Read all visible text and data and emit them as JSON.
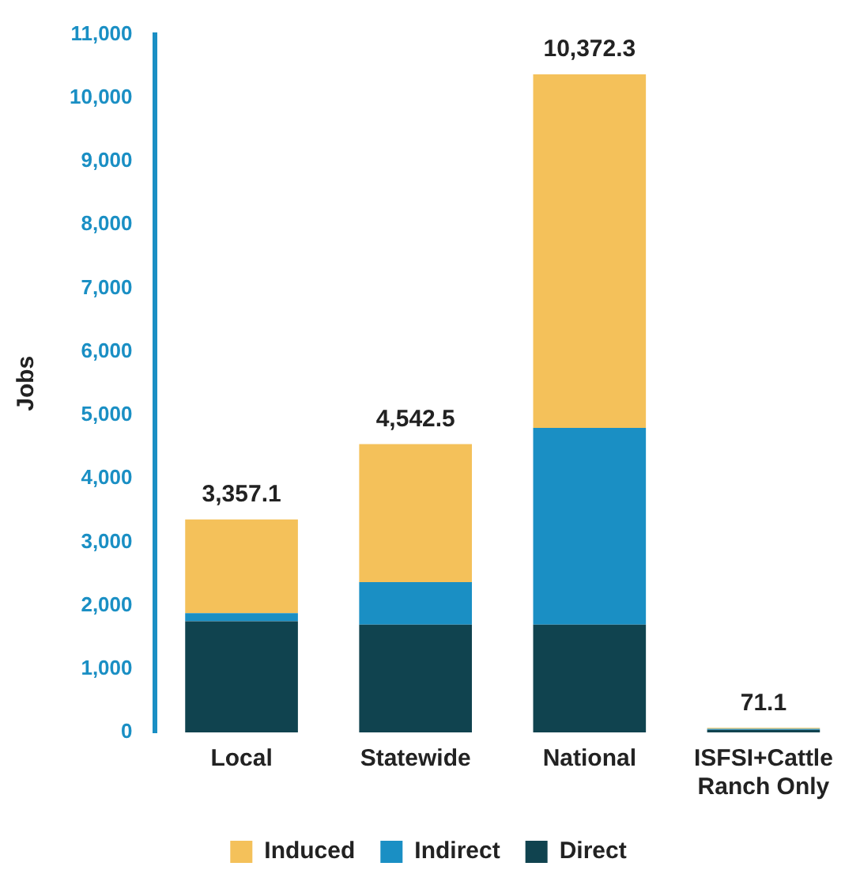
{
  "chart_data": {
    "type": "bar",
    "ylabel": "Jobs",
    "categories": [
      "Local",
      "Statewide",
      "National",
      "ISFSI+Cattle Ranch Only"
    ],
    "stacked": true,
    "series": [
      {
        "name": "Direct",
        "color": "#10434f",
        "values": [
          1750,
          1700,
          1700,
          40
        ]
      },
      {
        "name": "Indirect",
        "color": "#1a8fc4",
        "values": [
          130,
          670,
          3100,
          15
        ]
      },
      {
        "name": "Induced",
        "color": "#f4c15a",
        "values": [
          1477.1,
          2172.5,
          5572.3,
          16.1
        ]
      }
    ],
    "ylim": [
      0,
      11000
    ],
    "yticks": [
      {
        "value": 0,
        "label": "0"
      },
      {
        "value": 1000,
        "label": "1,000"
      },
      {
        "value": 2000,
        "label": "2,000"
      },
      {
        "value": 3000,
        "label": "3,000"
      },
      {
        "value": 4000,
        "label": "4,000"
      },
      {
        "value": 5000,
        "label": "5,000"
      },
      {
        "value": 6000,
        "label": "6,000"
      },
      {
        "value": 7000,
        "label": "7,000"
      },
      {
        "value": 8000,
        "label": "8,000"
      },
      {
        "value": 9000,
        "label": "9,000"
      },
      {
        "value": 10000,
        "label": "10,000"
      },
      {
        "value": 11000,
        "label": "11,000"
      }
    ],
    "totals": [
      "3,357.1",
      "4,542.5",
      "10,372.3",
      "71.1"
    ],
    "grid": false,
    "legend": "bottom"
  }
}
